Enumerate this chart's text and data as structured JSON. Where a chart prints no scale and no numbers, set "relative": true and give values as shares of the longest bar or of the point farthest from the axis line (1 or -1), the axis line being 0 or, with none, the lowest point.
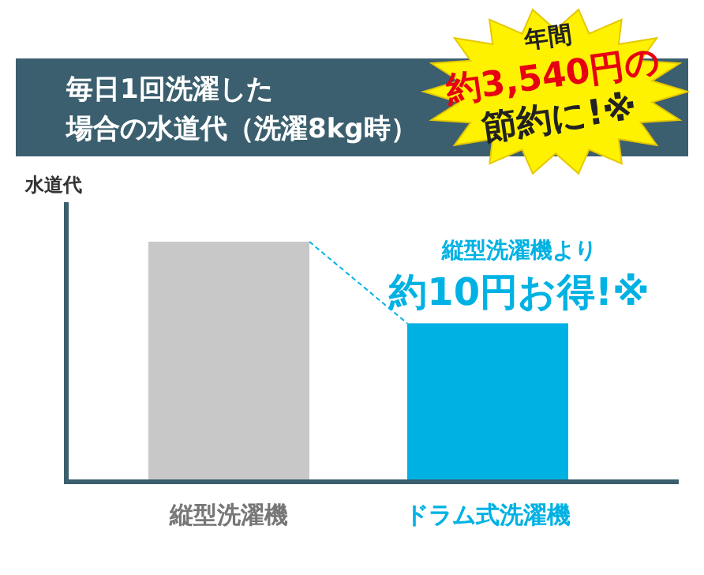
{
  "chart_data": {
    "type": "bar",
    "title": "毎日1回洗濯した場合の水道代（洗濯8kg時）",
    "ylabel": "水道代",
    "relative": true,
    "categories": [
      "縦型洗濯機",
      "ドラム式洗濯機"
    ],
    "values": [
      1,
      0.66
    ],
    "colors": [
      "#c8c8c8",
      "#00b2e3"
    ],
    "annotations": [
      "年間約3,540円の節約に!※",
      "縦型洗濯機より約10円お得!※"
    ]
  }
}
